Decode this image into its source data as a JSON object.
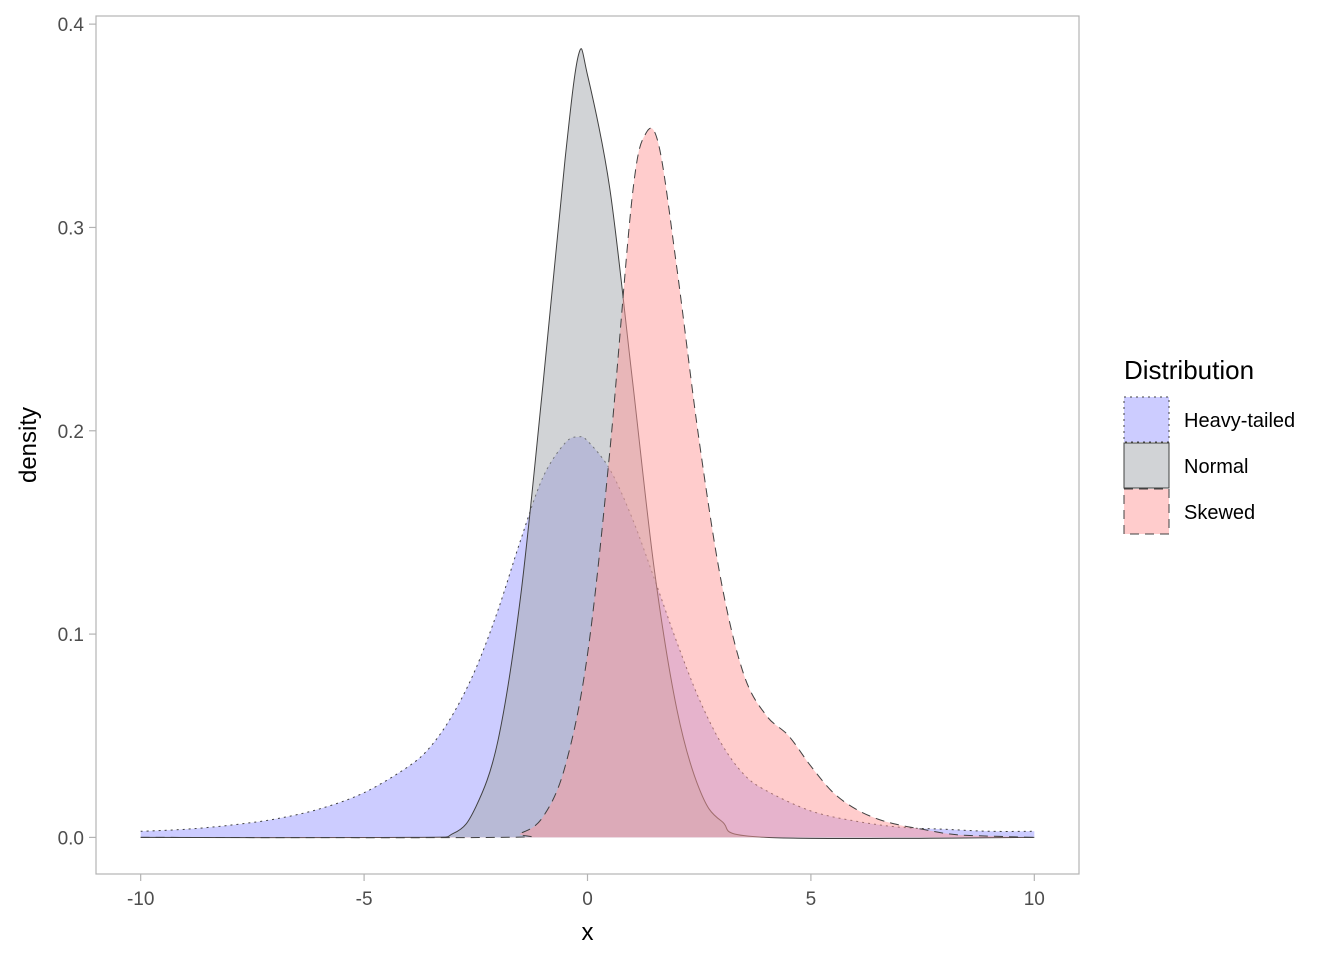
{
  "chart_data": {
    "type": "area",
    "title": "",
    "xlabel": "x",
    "ylabel": "density",
    "xlim": [
      -11,
      11
    ],
    "ylim": [
      -0.018,
      0.404
    ],
    "x_ticks": [
      -10,
      -5,
      0,
      5,
      10
    ],
    "x_tick_labels": [
      "-10",
      "-5",
      "0",
      "5",
      "10"
    ],
    "y_ticks": [
      0.0,
      0.1,
      0.2,
      0.3,
      0.4
    ],
    "y_tick_labels": [
      "0.0",
      "0.1",
      "0.2",
      "0.3",
      "0.4"
    ],
    "grid": false,
    "legend": {
      "title": "Distribution",
      "position": "right",
      "entries": [
        "Heavy-tailed",
        "Normal",
        "Skewed"
      ]
    },
    "series": [
      {
        "name": "Heavy-tailed",
        "fill": "#9999ff",
        "line_style": "dotted",
        "x": [
          -10,
          -9,
          -8,
          -7,
          -6,
          -5,
          -4,
          -3.5,
          -3,
          -2.5,
          -2,
          -1.5,
          -1,
          -0.5,
          -0.2,
          0,
          0.5,
          1,
          1.5,
          2,
          2.5,
          3,
          3.5,
          4,
          5,
          6,
          7,
          8,
          9,
          10
        ],
        "values": [
          0.003,
          0.004,
          0.006,
          0.009,
          0.014,
          0.022,
          0.035,
          0.045,
          0.061,
          0.083,
          0.112,
          0.146,
          0.177,
          0.194,
          0.197,
          0.195,
          0.181,
          0.157,
          0.127,
          0.096,
          0.068,
          0.046,
          0.031,
          0.023,
          0.013,
          0.008,
          0.005,
          0.004,
          0.003,
          0.003
        ]
      },
      {
        "name": "Normal",
        "fill": "#a3a7ad",
        "line_style": "solid",
        "x": [
          -10,
          -4,
          -3,
          -2.5,
          -2,
          -1.5,
          -1,
          -0.5,
          -0.2,
          0,
          0.5,
          1,
          1.5,
          2,
          2.5,
          3,
          4,
          10
        ],
        "values": [
          0.0,
          0.0,
          0.002,
          0.015,
          0.048,
          0.118,
          0.222,
          0.334,
          0.385,
          0.375,
          0.319,
          0.226,
          0.131,
          0.063,
          0.024,
          0.008,
          0.0,
          0.0
        ],
        "peak": 0.385
      },
      {
        "name": "Skewed",
        "fill": "#ff9999",
        "line_style": "dashed",
        "x": [
          -10,
          -2,
          -1.5,
          -1,
          -0.5,
          0,
          0.5,
          1,
          1.3,
          1.6,
          2,
          2.5,
          3,
          3.5,
          4,
          4.5,
          5,
          5.5,
          6,
          6.5,
          7,
          7.5,
          8,
          8.5,
          10
        ],
        "values": [
          0.0,
          0.0,
          0.002,
          0.01,
          0.035,
          0.09,
          0.19,
          0.315,
          0.346,
          0.34,
          0.28,
          0.195,
          0.125,
          0.08,
          0.06,
          0.05,
          0.035,
          0.022,
          0.014,
          0.009,
          0.006,
          0.004,
          0.002,
          0.001,
          0.0
        ]
      }
    ]
  }
}
